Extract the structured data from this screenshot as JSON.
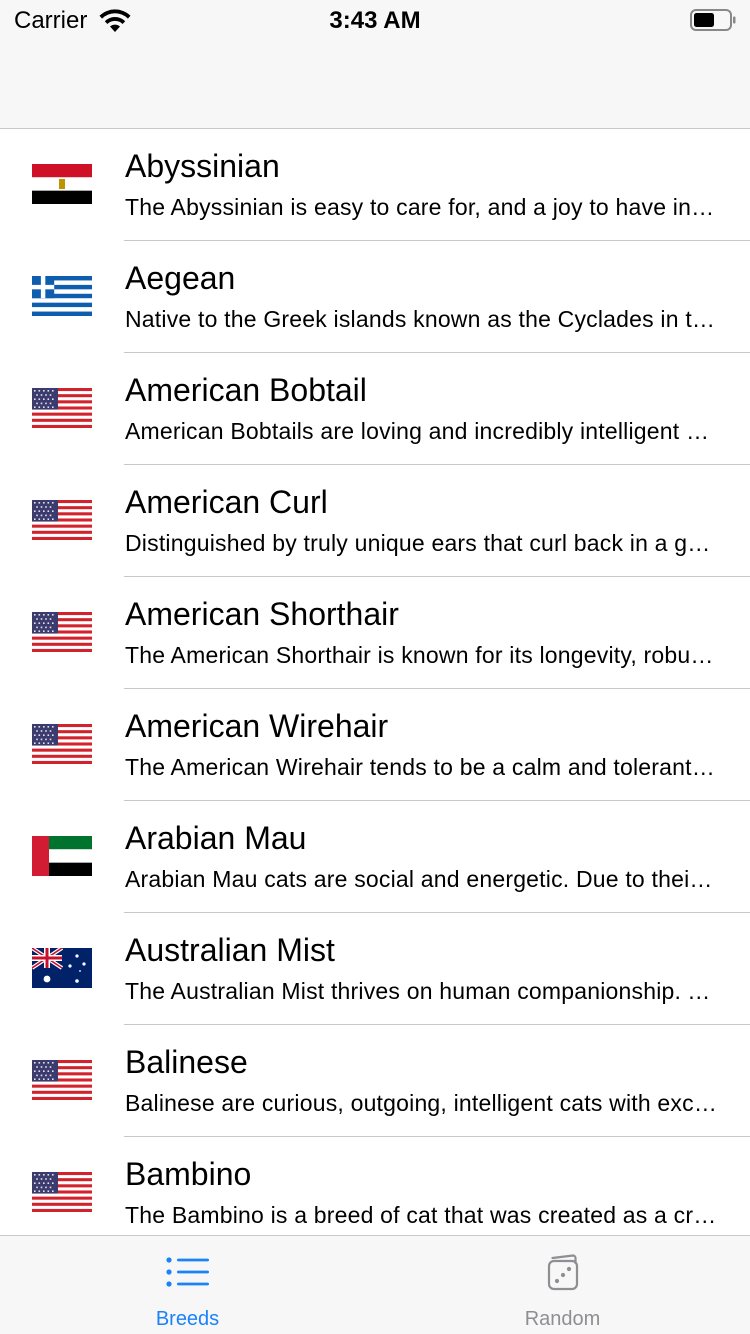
{
  "status_bar": {
    "carrier": "Carrier",
    "time": "3:43 AM"
  },
  "breeds": [
    {
      "name": "Abyssinian",
      "description": "The Abyssinian is easy to care for, and a joy to have in your home. They’re affectionate cats and love both people and other animals.",
      "flag": "egypt"
    },
    {
      "name": "Aegean",
      "description": "Native to the Greek islands known as the Cyclades in the Aegean Sea, these are natural cats, meaning they developed without humans getting involved.",
      "flag": "greece"
    },
    {
      "name": "American Bobtail",
      "description": "American Bobtails are loving and incredibly intelligent cats possessing a distinctive wild appearance.",
      "flag": "usa"
    },
    {
      "name": "American Curl",
      "description": "Distinguished by truly unique ears that curl back in a graceful arc, offering an alert, perky, happily surprised expression.",
      "flag": "usa"
    },
    {
      "name": "American Shorthair",
      "description": "The American Shorthair is known for its longevity, robust health, good looks, sweet personality, and amiability with children.",
      "flag": "usa"
    },
    {
      "name": "American Wirehair",
      "description": "The American Wirehair tends to be a calm and tolerant cat who takes life as it comes.",
      "flag": "usa"
    },
    {
      "name": "Arabian Mau",
      "description": "Arabian Mau cats are social and energetic. Due to their energy levels, these cats do best in homes where their owners will be able to provide them with plenty of playtime.",
      "flag": "uae"
    },
    {
      "name": "Australian Mist",
      "description": "The Australian Mist thrives on human companionship. Tolerant of handling by even the youngest of children.",
      "flag": "australia"
    },
    {
      "name": "Balinese",
      "description": "Balinese are curious, outgoing, intelligent cats with excellent communication skills.",
      "flag": "usa"
    },
    {
      "name": "Bambino",
      "description": "The Bambino is a breed of cat that was created as a cross between the Sphynx and the Munchkin breeds.",
      "flag": "usa"
    }
  ],
  "tab_bar": {
    "tabs": [
      {
        "label": "Breeds",
        "icon": "list-icon",
        "active": true
      },
      {
        "label": "Random",
        "icon": "dice-icon",
        "active": false
      }
    ],
    "active_color": "#1a82fb",
    "inactive_color": "#8e8e93"
  }
}
